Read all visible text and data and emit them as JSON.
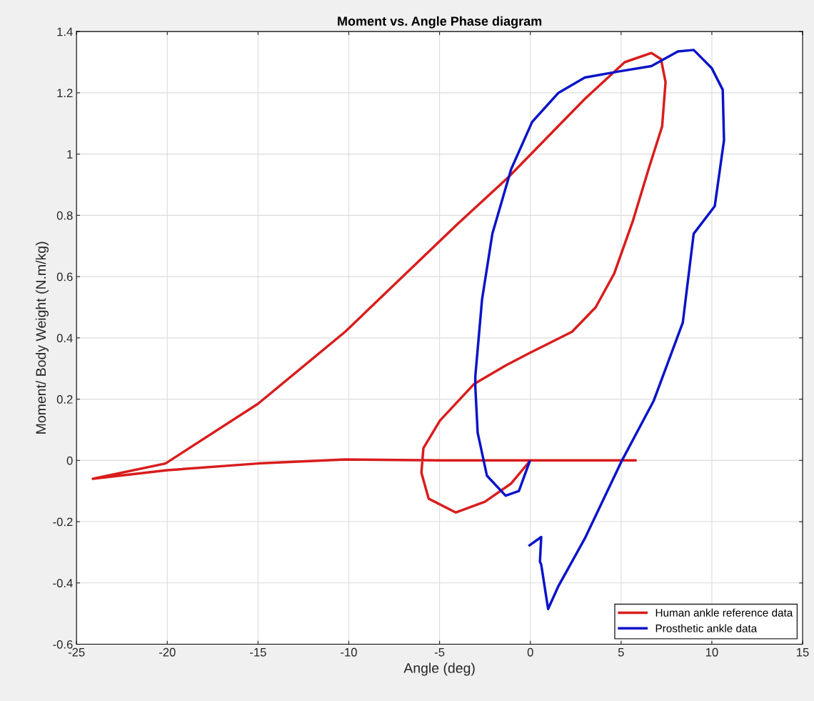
{
  "chart_data": {
    "type": "line",
    "title": "Moment vs. Angle Phase diagram",
    "xlabel": "Angle (deg)",
    "ylabel": "Moment/ Body Weight (N.m/kg)",
    "xlim": [
      -25,
      15
    ],
    "xticks": [
      -25,
      -20,
      -15,
      -10,
      -5,
      0,
      5,
      10,
      15
    ],
    "ylim": [
      -0.6,
      1.4
    ],
    "yticks": [
      -0.6,
      -0.4,
      -0.2,
      0,
      0.2,
      0.4,
      0.6,
      0.8,
      1,
      1.2,
      1.4
    ],
    "grid": true,
    "legend": "bottom right",
    "marker": "none",
    "line_style": "solid",
    "series": [
      {
        "name": "Human ankle reference data",
        "color": "#d91c1c",
        "x": [
          5.79,
          0,
          -5,
          -10.2,
          -15,
          -20,
          -24.1,
          -20.1,
          -15,
          -10.2,
          -4.04,
          -1.2,
          3.0,
          5.2,
          6.67,
          7.2,
          7.45,
          7.26,
          6.51,
          5.64,
          4.62,
          3.6,
          2.3,
          -0.06,
          -1.36,
          -3.09,
          -4.98,
          -5.89,
          -6.0,
          -5.6,
          -4.1,
          -2.5,
          -1.05,
          0
        ],
        "values": [
          0,
          0,
          0,
          0.003,
          -0.01,
          -0.032,
          -0.06,
          -0.01,
          0.185,
          0.42,
          0.77,
          0.925,
          1.18,
          1.3,
          1.33,
          1.31,
          1.235,
          1.09,
          0.95,
          0.78,
          0.61,
          0.5,
          0.42,
          0.35,
          0.31,
          0.25,
          0.13,
          0.04,
          -0.04,
          -0.125,
          -0.17,
          -0.135,
          -0.075,
          0
        ]
      },
      {
        "name": "Prosthetic ankle data",
        "color": "#0a14c8",
        "x": [
          -0.04,
          0.6,
          0.53,
          0.6,
          0.98,
          1.55,
          3.0,
          5.05,
          6.8,
          8.4,
          9.0,
          10.16,
          10.67,
          10.6,
          10.0,
          9.0,
          8.13,
          6.67,
          4.9,
          3.0,
          1.55,
          0.1,
          -1.06,
          -2.09,
          -2.66,
          -3.03,
          -3.03,
          -2.9,
          -2.39,
          -1.36,
          -0.63,
          -0.04
        ],
        "values": [
          -0.277,
          -0.25,
          -0.33,
          -0.34,
          -0.485,
          -0.41,
          -0.255,
          0.0,
          0.195,
          0.45,
          0.74,
          0.83,
          1.045,
          1.21,
          1.28,
          1.34,
          1.335,
          1.287,
          1.27,
          1.25,
          1.2,
          1.105,
          0.95,
          0.74,
          0.525,
          0.275,
          0.24,
          0.09,
          -0.05,
          -0.115,
          -0.1,
          -0.004
        ]
      }
    ]
  }
}
